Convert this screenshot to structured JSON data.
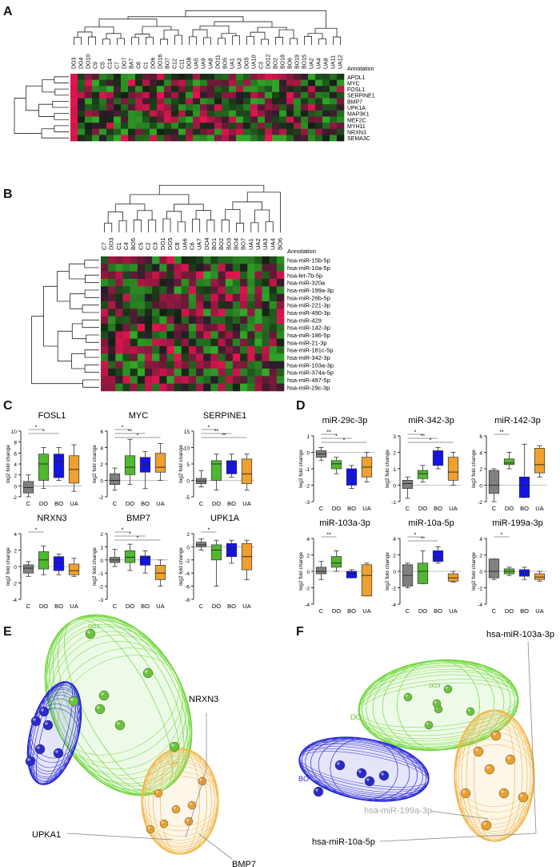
{
  "panels": {
    "A": {
      "letter": "A",
      "annotation_label": "Annotation",
      "columns": [
        "DO3",
        "DO4",
        "DO10",
        "C9",
        "C5",
        "C14",
        "C7",
        "DO7",
        "BA7",
        "C8",
        "C1",
        "DO6",
        "DO16",
        "BO7",
        "C12",
        "C11",
        "DO8",
        "UA5",
        "UA9",
        "UA8",
        "DO11",
        "BO5",
        "UA1",
        "UA3",
        "DO5",
        "UA10",
        "C3",
        "DO12",
        "BO2",
        "BO18",
        "BO6",
        "BO19",
        "BO15",
        "UA2",
        "UA4",
        "UA8",
        "UA11",
        "UA12"
      ],
      "rows": [
        "APOL1",
        "MYC",
        "FOSL1",
        "SERPINE1",
        "BMP7",
        "UPK1A",
        "MAP3K1",
        "MEF2C",
        "MYH11",
        "NRXN3",
        "SEMA3C"
      ]
    },
    "B": {
      "letter": "B",
      "annotation_label": "Annotation",
      "columns": [
        "C7",
        "DO3",
        "C1",
        "C4",
        "BO5",
        "C5",
        "C2",
        "C3",
        "DO1",
        "DO5",
        "C8",
        "UA6",
        "C6",
        "UA7",
        "DO4",
        "BO1",
        "BO2",
        "BO3",
        "BO4",
        "BO7",
        "UA1",
        "UA2",
        "UA3",
        "UA4",
        "BO6"
      ],
      "rows": [
        "hsa-miR-15b-5p",
        "hsa-miR-10a-5p",
        "hsa-let-7b-5p",
        "hsa-miR-320a",
        "hsa-miR-199a-3p",
        "hsa-miR-26b-5p",
        "hsa-miR-221-3p",
        "hsa-miR-490-3p",
        "hsa-miR-429",
        "hsa-miR-142-3p",
        "hsa-miR-186-5p",
        "hsa-miR-21-3p",
        "hsa-miR-181c-5p",
        "hsa-miR-342-3p",
        "hsa-miR-103a-3p",
        "hsa-miR-374a-5p",
        "hsa-miR-497-5p",
        "hsa-miR-29c-3p"
      ]
    },
    "C": {
      "letter": "C",
      "ylabel": "log2 fold change",
      "groups": [
        "C",
        "DO",
        "BO",
        "UA"
      ],
      "plots": [
        {
          "title": "FOSL1",
          "yticks": [
            "10",
            "8",
            "6",
            "4",
            "2",
            "0",
            "-2"
          ],
          "ymin": -2,
          "ymax": 10,
          "sig": [
            "*",
            "*"
          ],
          "boxes": [
            {
              "q1": -1.3,
              "med": -0.3,
              "q3": 0.8,
              "lo": -2,
              "hi": 2
            },
            {
              "q1": 1,
              "med": 4,
              "q3": 5.8,
              "lo": -0.5,
              "hi": 7
            },
            {
              "q1": 1.5,
              "med": 4.5,
              "q3": 5.8,
              "lo": 1,
              "hi": 7
            },
            {
              "q1": 0.5,
              "med": 3,
              "q3": 5.5,
              "lo": -1,
              "hi": 7.5
            }
          ]
        },
        {
          "title": "MYC",
          "yticks": [
            "6",
            "4",
            "2",
            "0",
            "-2"
          ],
          "ymin": -2,
          "ymax": 6,
          "sig": [
            "*",
            "**",
            "*"
          ],
          "boxes": [
            {
              "q1": -0.5,
              "med": 0,
              "q3": 0.8,
              "lo": -1.2,
              "hi": 1.5
            },
            {
              "q1": 0.7,
              "med": 1.6,
              "q3": 3,
              "lo": -0.5,
              "hi": 5
            },
            {
              "q1": 1,
              "med": 1.9,
              "q3": 2.8,
              "lo": -1,
              "hi": 3.5
            },
            {
              "q1": 1,
              "med": 1.6,
              "q3": 3.3,
              "lo": 0,
              "hi": 4.5
            }
          ]
        },
        {
          "title": "SERPINE1",
          "yticks": [
            "15",
            "10",
            "5",
            "0",
            "-5"
          ],
          "ymin": -5,
          "ymax": 15,
          "sig": [
            "*",
            "**",
            "**"
          ],
          "boxes": [
            {
              "q1": -1,
              "med": -0.2,
              "q3": 0.6,
              "lo": -2,
              "hi": 3
            },
            {
              "q1": 0,
              "med": 5,
              "q3": 6,
              "lo": -3,
              "hi": 8
            },
            {
              "q1": 2,
              "med": 5,
              "q3": 6,
              "lo": 1,
              "hi": 8
            },
            {
              "q1": -1,
              "med": 2,
              "q3": 6.5,
              "lo": -3,
              "hi": 8
            }
          ]
        },
        {
          "title": "NRXN3",
          "yticks": [
            "4",
            "2",
            "0",
            "-2",
            "-4"
          ],
          "ymin": -4,
          "ymax": 4,
          "sig": [
            "*"
          ],
          "boxes": [
            {
              "q1": -0.8,
              "med": -0.2,
              "q3": 0.2,
              "lo": -1.2,
              "hi": 0.6
            },
            {
              "q1": -0.3,
              "med": 0.8,
              "q3": 1.8,
              "lo": -1,
              "hi": 2.5
            },
            {
              "q1": -0.5,
              "med": 0.5,
              "q3": 1.2,
              "lo": -1,
              "hi": 1.5
            },
            {
              "q1": -1,
              "med": -0.5,
              "q3": 0.3,
              "lo": -1.2,
              "hi": 1
            }
          ]
        },
        {
          "title": "BMP7",
          "yticks": [
            "2",
            "1",
            "0",
            "-1",
            "-2",
            "-3"
          ],
          "ymin": -3,
          "ymax": 2,
          "sig": [
            "*",
            "*",
            "*"
          ],
          "boxes": [
            {
              "q1": -0.2,
              "med": 0,
              "q3": 0.2,
              "lo": -0.5,
              "hi": 0.8
            },
            {
              "q1": -0.2,
              "med": 0.2,
              "q3": 0.7,
              "lo": -0.8,
              "hi": 1.2
            },
            {
              "q1": -0.4,
              "med": 0.1,
              "q3": 0.3,
              "lo": -1,
              "hi": 0.7
            },
            {
              "q1": -1.5,
              "med": -1,
              "q3": -0.4,
              "lo": -2,
              "hi": 0
            }
          ]
        },
        {
          "title": "UPK1A",
          "yticks": [
            "2",
            "0",
            "-2",
            "-4",
            "-6",
            "-8"
          ],
          "ymin": -8,
          "ymax": 2,
          "sig": [
            "*"
          ],
          "boxes": [
            {
              "q1": 0,
              "med": 0.3,
              "q3": 0.7,
              "lo": -0.5,
              "hi": 1.2
            },
            {
              "q1": -2,
              "med": -0.5,
              "q3": 0.3,
              "lo": -6,
              "hi": 1
            },
            {
              "q1": -1.5,
              "med": -0.3,
              "q3": 0.5,
              "lo": -2.5,
              "hi": 1
            },
            {
              "q1": -3.5,
              "med": -1.5,
              "q3": 0.5,
              "lo": -5,
              "hi": 1
            }
          ]
        }
      ]
    },
    "D": {
      "letter": "D",
      "ylabel": "log2 fold change",
      "groups": [
        "C",
        "DO",
        "BO",
        "UA"
      ],
      "plots": [
        {
          "title": "miR-29c-3p",
          "yticks": [
            "1",
            "0",
            "-1",
            "-2",
            "-3"
          ],
          "ymin": -3,
          "ymax": 1,
          "sig": [
            "**",
            "*",
            "*"
          ],
          "boxes": [
            {
              "q1": -0.3,
              "med": -0.1,
              "q3": 0.1,
              "lo": -0.5,
              "hi": 0.3
            },
            {
              "q1": -1,
              "med": -0.7,
              "q3": -0.5,
              "lo": -1.3,
              "hi": -0.3
            },
            {
              "q1": -2,
              "med": -1.5,
              "q3": -1,
              "lo": -2.2,
              "hi": -0.8
            },
            {
              "q1": -1.5,
              "med": -0.9,
              "q3": -0.3,
              "lo": -1.8,
              "hi": 0
            }
          ]
        },
        {
          "title": "miR-342-3p",
          "yticks": [
            "3",
            "2",
            "1",
            "0",
            "-1"
          ],
          "ymin": -1,
          "ymax": 3,
          "sig": [
            "*",
            "**",
            "*"
          ],
          "boxes": [
            {
              "q1": -0.2,
              "med": 0.1,
              "q3": 0.3,
              "lo": -0.8,
              "hi": 0.5
            },
            {
              "q1": 0.4,
              "med": 0.7,
              "q3": 0.9,
              "lo": 0.2,
              "hi": 1.2
            },
            {
              "q1": 1.2,
              "med": 1.8,
              "q3": 2.1,
              "lo": 1,
              "hi": 2.3
            },
            {
              "q1": 0.3,
              "med": 0.8,
              "q3": 1.7,
              "lo": 0,
              "hi": 2
            }
          ]
        },
        {
          "title": "miR-142-3p",
          "yticks": [
            "6",
            "4",
            "2",
            "0",
            "-2"
          ],
          "ymin": -2,
          "ymax": 6,
          "sig": [
            "**"
          ],
          "boxes": [
            {
              "q1": -1,
              "med": 0,
              "q3": 1.8,
              "lo": -2,
              "hi": 2
            },
            {
              "q1": 2.5,
              "med": 2.7,
              "q3": 3.2,
              "lo": 2,
              "hi": 4
            },
            {
              "q1": -1.5,
              "med": 0,
              "q3": 1,
              "lo": -1.5,
              "hi": 5
            },
            {
              "q1": 1.5,
              "med": 2.5,
              "q3": 4.5,
              "lo": 1,
              "hi": 4.8
            }
          ]
        },
        {
          "title": "miR-103a-3p",
          "yticks": [
            "4",
            "2",
            "0",
            "-2",
            "-4"
          ],
          "ymin": -4,
          "ymax": 4,
          "sig": [
            "**"
          ],
          "boxes": [
            {
              "q1": -0.3,
              "med": 0,
              "q3": 0.5,
              "lo": -1,
              "hi": 1.2
            },
            {
              "q1": 0.5,
              "med": 1,
              "q3": 1.8,
              "lo": 0,
              "hi": 2.5
            },
            {
              "q1": -0.8,
              "med": -0.3,
              "q3": 0,
              "lo": -0.8,
              "hi": 0.2
            },
            {
              "q1": -3,
              "med": -0.5,
              "q3": 0.8,
              "lo": -3,
              "hi": 1
            }
          ]
        },
        {
          "title": "miR-10a-5p",
          "yticks": [
            "4",
            "2",
            "0",
            "-2",
            "-4"
          ],
          "ymin": -4,
          "ymax": 4,
          "sig": [
            "*",
            "**"
          ],
          "boxes": [
            {
              "q1": -1.8,
              "med": -0.5,
              "q3": 0.8,
              "lo": -2,
              "hi": 1
            },
            {
              "q1": -1.5,
              "med": 0,
              "q3": 1,
              "lo": -1.5,
              "hi": 2.5
            },
            {
              "q1": 1.2,
              "med": 1.7,
              "q3": 2.5,
              "lo": 1,
              "hi": 3
            },
            {
              "q1": -1.2,
              "med": -0.8,
              "q3": -0.3,
              "lo": -1.3,
              "hi": 0
            }
          ]
        },
        {
          "title": "miR-199a-3p",
          "yticks": [
            "4",
            "2",
            "0",
            "-2",
            "-4"
          ],
          "ymin": -4,
          "ymax": 4,
          "sig": [
            "*"
          ],
          "boxes": [
            {
              "q1": -0.8,
              "med": 0,
              "q3": 1.5,
              "lo": -1,
              "hi": 1.5
            },
            {
              "q1": -0.3,
              "med": 0,
              "q3": 0.3,
              "lo": -0.5,
              "hi": 0.5
            },
            {
              "q1": -0.6,
              "med": -0.2,
              "q3": 0.2,
              "lo": -1,
              "hi": 0.5
            },
            {
              "q1": -1,
              "med": -0.7,
              "q3": -0.3,
              "lo": -1.2,
              "hi": 0
            }
          ]
        }
      ]
    },
    "E": {
      "letter": "E",
      "labels": {
        "top": "DO3",
        "right": "NRXN3",
        "left": "UPKA1",
        "bottom": "BMP7",
        "orange": "UA5"
      }
    },
    "F": {
      "letter": "F",
      "labels": {
        "top": "hsa-miR-103a-3p",
        "mid": "hsa-miR-199a-3p",
        "bottom": "hsa-miR-10a-5p",
        "blue": "BO",
        "green_top": "DO3",
        "green_left": "DO"
      }
    }
  },
  "colors": {
    "C": "#808080",
    "DO": "#52b830",
    "BO": "#1414e6",
    "UA": "#eea030",
    "grid_red": "#e0184c",
    "grid_green": "#3f9a2c",
    "mesh_green": "#6fd83a",
    "mesh_blue": "#2828d8",
    "mesh_orange": "#f0b84a"
  }
}
